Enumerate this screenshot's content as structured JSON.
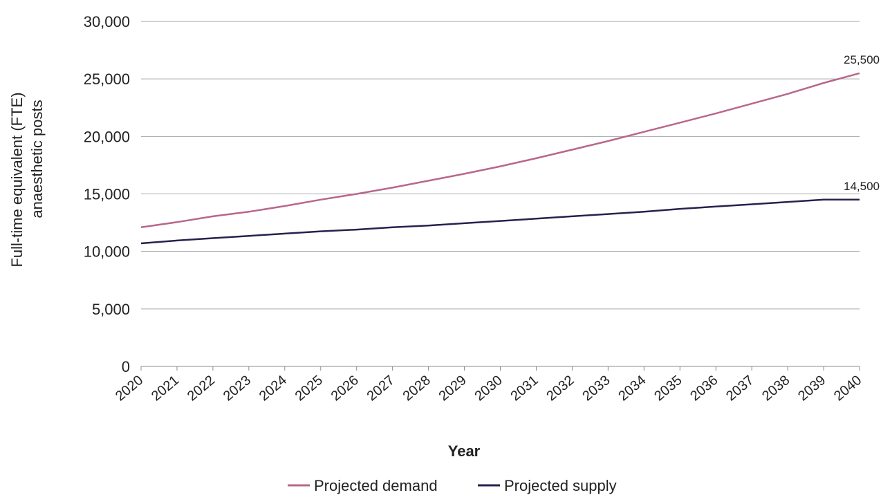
{
  "chart_data": {
    "type": "line",
    "ylabel_line1": "Full-time equivalent (FTE)",
    "ylabel_line2": "anaesthetic posts",
    "xlabel": "Year",
    "ylim": [
      0,
      30000
    ],
    "y_ticks": [
      "0",
      "5,000",
      "10,000",
      "15,000",
      "20,000",
      "25,000",
      "30,000"
    ],
    "y_tick_values": [
      0,
      5000,
      10000,
      15000,
      20000,
      25000,
      30000
    ],
    "categories": [
      "2020",
      "2021",
      "2022",
      "2023",
      "2024",
      "2025",
      "2026",
      "2027",
      "2028",
      "2029",
      "2030",
      "2031",
      "2032",
      "2033",
      "2034",
      "2035",
      "2036",
      "2037",
      "2038",
      "2039",
      "2040"
    ],
    "grid": "horizontal",
    "legend_position": "bottom",
    "series": [
      {
        "name": "Projected demand",
        "color": "#b8678a",
        "values": [
          12100,
          12550,
          13050,
          13450,
          13950,
          14500,
          15000,
          15550,
          16150,
          16750,
          17400,
          18100,
          18850,
          19600,
          20400,
          21200,
          22000,
          22850,
          23700,
          24650,
          25500
        ],
        "end_label": "25,500"
      },
      {
        "name": "Projected supply",
        "color": "#25224d",
        "values": [
          10700,
          10950,
          11150,
          11350,
          11550,
          11750,
          11900,
          12100,
          12250,
          12450,
          12650,
          12850,
          13050,
          13250,
          13450,
          13700,
          13900,
          14100,
          14300,
          14500,
          14500
        ],
        "end_label": "14,500"
      }
    ]
  }
}
